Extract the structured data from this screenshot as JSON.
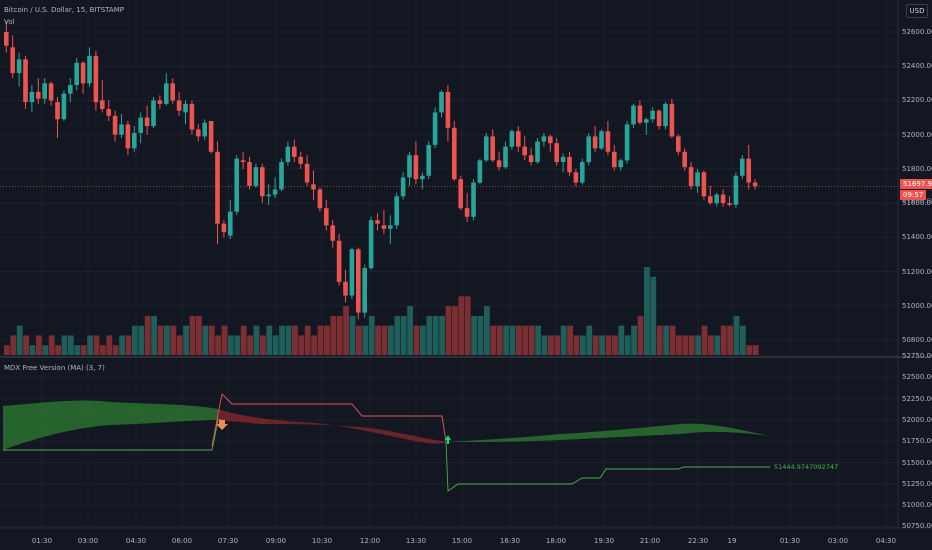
{
  "header": {
    "symbol_title": "Bitcoin / U.S. Dollar, 15, BITSTAMP",
    "volume_label": "Vol",
    "currency": "USD"
  },
  "indicator": {
    "title": "MDX Free Version (MA) (3, 7)",
    "value_label": "51444.9747092747"
  },
  "price_axis": {
    "labels": [
      "52600.00",
      "52400.00",
      "52200.00",
      "52000.00",
      "51800.00",
      "51600.00",
      "51400.00",
      "51200.00",
      "51000.00",
      "50800.00"
    ],
    "last_price": "51697.94",
    "countdown": "09:57",
    "partial_label": "51600.00"
  },
  "indicator_axis": {
    "labels": [
      "52750.00",
      "52500.00",
      "52250.00",
      "52000.00",
      "51750.00",
      "51500.00",
      "51250.00",
      "51000.00",
      "50750.00"
    ]
  },
  "time_axis": {
    "labels": [
      "01:30",
      "03:00",
      "04:30",
      "06:00",
      "07:30",
      "09:00",
      "10:30",
      "12:00",
      "13:30",
      "15:00",
      "16:30",
      "18:00",
      "19:30",
      "21:00",
      "22:30",
      "19",
      "01:30",
      "03:00",
      "04:30"
    ]
  },
  "colors": {
    "background": "#131722",
    "up": "#26a69a",
    "down": "#ef5350",
    "vol_up": "#1f5e5a",
    "vol_down": "#7c2f33",
    "band_green": "#2e7d32",
    "band_red": "#8e2a2c",
    "grid": "#1e222d"
  },
  "chart_data": {
    "type": "candlestick",
    "ylim": [
      50750,
      52700
    ],
    "candles": [
      [
        52600,
        52660,
        52480,
        52520
      ],
      [
        52510,
        52580,
        52330,
        52360
      ],
      [
        52360,
        52480,
        52280,
        52440
      ],
      [
        52440,
        52460,
        52150,
        52190
      ],
      [
        52190,
        52290,
        52130,
        52250
      ],
      [
        52250,
        52330,
        52180,
        52210
      ],
      [
        52210,
        52330,
        52180,
        52300
      ],
      [
        52300,
        52310,
        52170,
        52200
      ],
      [
        52190,
        52220,
        51980,
        52090
      ],
      [
        52090,
        52260,
        52080,
        52240
      ],
      [
        52240,
        52330,
        52190,
        52290
      ],
      [
        52290,
        52450,
        52260,
        52420
      ],
      [
        52420,
        52430,
        52240,
        52300
      ],
      [
        52300,
        52510,
        52280,
        52460
      ],
      [
        52460,
        52490,
        52140,
        52190
      ],
      [
        52200,
        52320,
        52130,
        52150
      ],
      [
        52150,
        52200,
        52080,
        52110
      ],
      [
        52110,
        52140,
        51960,
        52000
      ],
      [
        52000,
        52120,
        51980,
        52060
      ],
      [
        52060,
        52080,
        51880,
        51920
      ],
      [
        51920,
        52050,
        51900,
        52010
      ],
      [
        52010,
        52130,
        51950,
        52100
      ],
      [
        52100,
        52170,
        52000,
        52050
      ],
      [
        52050,
        52220,
        52040,
        52200
      ],
      [
        52200,
        52230,
        52150,
        52180
      ],
      [
        52180,
        52360,
        52170,
        52300
      ],
      [
        52300,
        52330,
        52180,
        52200
      ],
      [
        52200,
        52250,
        52110,
        52140
      ],
      [
        52130,
        52200,
        52060,
        52180
      ],
      [
        52180,
        52200,
        52000,
        52030
      ],
      [
        52030,
        52060,
        51960,
        51990
      ],
      [
        51990,
        52090,
        51970,
        52070
      ],
      [
        52080,
        52070,
        51890,
        51900
      ],
      [
        51900,
        51960,
        51360,
        51480
      ],
      [
        51480,
        51500,
        51400,
        51430
      ],
      [
        51410,
        51620,
        51390,
        51550
      ],
      [
        51550,
        51880,
        51530,
        51860
      ],
      [
        51850,
        51900,
        51800,
        51840
      ],
      [
        51840,
        51870,
        51680,
        51700
      ],
      [
        51700,
        51830,
        51690,
        51810
      ],
      [
        51810,
        51830,
        51600,
        51640
      ],
      [
        51640,
        51710,
        51590,
        51650
      ],
      [
        51650,
        51750,
        51630,
        51680
      ],
      [
        51680,
        51860,
        51670,
        51840
      ],
      [
        51840,
        51960,
        51820,
        51930
      ],
      [
        51930,
        51970,
        51840,
        51870
      ],
      [
        51870,
        51900,
        51800,
        51830
      ],
      [
        51830,
        51880,
        51700,
        51720
      ],
      [
        51710,
        51790,
        51620,
        51680
      ],
      [
        51680,
        51690,
        51550,
        51570
      ],
      [
        51570,
        51620,
        51440,
        51470
      ],
      [
        51470,
        51500,
        51340,
        51380
      ],
      [
        51380,
        51420,
        51120,
        51140
      ],
      [
        51140,
        51210,
        51020,
        51060
      ],
      [
        51060,
        51340,
        51040,
        51330
      ],
      [
        51330,
        51340,
        50920,
        50960
      ],
      [
        50960,
        51240,
        50930,
        51220
      ],
      [
        51220,
        51520,
        51210,
        51500
      ],
      [
        51500,
        51540,
        51440,
        51480
      ],
      [
        51470,
        51560,
        51420,
        51450
      ],
      [
        51450,
        51530,
        51360,
        51470
      ],
      [
        51470,
        51660,
        51450,
        51640
      ],
      [
        51640,
        51780,
        51620,
        51750
      ],
      [
        51750,
        51900,
        51700,
        51880
      ],
      [
        51880,
        51960,
        51710,
        51740
      ],
      [
        51740,
        51780,
        51680,
        51760
      ],
      [
        51760,
        51960,
        51740,
        51940
      ],
      [
        51940,
        52160,
        51920,
        52130
      ],
      [
        52130,
        52260,
        52100,
        52250
      ],
      [
        52250,
        52290,
        51960,
        52040
      ],
      [
        52040,
        52080,
        51730,
        51740
      ],
      [
        51740,
        51760,
        51560,
        51570
      ],
      [
        51570,
        51660,
        51490,
        51520
      ],
      [
        51520,
        51740,
        51500,
        51720
      ],
      [
        51720,
        51860,
        51710,
        51850
      ],
      [
        51850,
        52010,
        51840,
        51990
      ],
      [
        51990,
        52030,
        51840,
        51850
      ],
      [
        51850,
        51900,
        51790,
        51810
      ],
      [
        51810,
        51960,
        51800,
        51930
      ],
      [
        51930,
        52030,
        51910,
        52020
      ],
      [
        52020,
        52050,
        51900,
        51930
      ],
      [
        51930,
        51990,
        51850,
        51880
      ],
      [
        51880,
        51920,
        51820,
        51840
      ],
      [
        51840,
        51980,
        51830,
        51960
      ],
      [
        51960,
        52010,
        51930,
        51990
      ],
      [
        51990,
        52000,
        51900,
        51950
      ],
      [
        51950,
        51980,
        51820,
        51840
      ],
      [
        51840,
        51890,
        51780,
        51870
      ],
      [
        51870,
        51900,
        51760,
        51780
      ],
      [
        51780,
        51800,
        51700,
        51720
      ],
      [
        51720,
        51860,
        51710,
        51840
      ],
      [
        51840,
        52010,
        51820,
        51990
      ],
      [
        51990,
        52050,
        51900,
        51920
      ],
      [
        51920,
        52030,
        51910,
        52020
      ],
      [
        52020,
        52080,
        51880,
        51900
      ],
      [
        51900,
        51940,
        51790,
        51810
      ],
      [
        51810,
        51860,
        51790,
        51850
      ],
      [
        51850,
        52080,
        51830,
        52060
      ],
      [
        52060,
        52180,
        52040,
        52170
      ],
      [
        52170,
        52200,
        52060,
        52070
      ],
      [
        52070,
        52100,
        52000,
        52090
      ],
      [
        52090,
        52160,
        52070,
        52140
      ],
      [
        52140,
        52150,
        52030,
        52050
      ],
      [
        52050,
        52190,
        52030,
        52180
      ],
      [
        52180,
        52210,
        51980,
        51990
      ],
      [
        51990,
        52000,
        51880,
        51900
      ],
      [
        51900,
        51920,
        51790,
        51810
      ],
      [
        51810,
        51840,
        51680,
        51700
      ],
      [
        51700,
        51800,
        51660,
        51780
      ],
      [
        51780,
        51790,
        51620,
        51640
      ],
      [
        51640,
        51700,
        51590,
        51600
      ],
      [
        51600,
        51660,
        51580,
        51650
      ],
      [
        51650,
        51680,
        51580,
        51600
      ],
      [
        51600,
        51640,
        51580,
        51590
      ],
      [
        51590,
        51780,
        51570,
        51760
      ],
      [
        51760,
        51880,
        51740,
        51860
      ],
      [
        51860,
        51940,
        51680,
        51720
      ],
      [
        51720,
        51740,
        51680,
        51698
      ]
    ],
    "volume": [
      1,
      2,
      3,
      2,
      1,
      2,
      1,
      2,
      1,
      2,
      2,
      1,
      1,
      2,
      2,
      1,
      2,
      1,
      2,
      2,
      3,
      3,
      4,
      4,
      3,
      3,
      3,
      2,
      3,
      4,
      4,
      3,
      3,
      2,
      3,
      2,
      2,
      3,
      2,
      3,
      2,
      3,
      2,
      3,
      3,
      3,
      2,
      3,
      2,
      3,
      3,
      4,
      4,
      5,
      4,
      3,
      3,
      4,
      3,
      3,
      3,
      4,
      4,
      5,
      3,
      3,
      4,
      4,
      4,
      5,
      5,
      6,
      6,
      4,
      4,
      5,
      3,
      3,
      3,
      3,
      3,
      3,
      3,
      3,
      2,
      2,
      2,
      3,
      3,
      2,
      2,
      3,
      2,
      2,
      2,
      2,
      3,
      2,
      3,
      4,
      9,
      8,
      3,
      3,
      3,
      2,
      2,
      2,
      2,
      3,
      2,
      2,
      3,
      3,
      4,
      3,
      1,
      1
    ]
  }
}
